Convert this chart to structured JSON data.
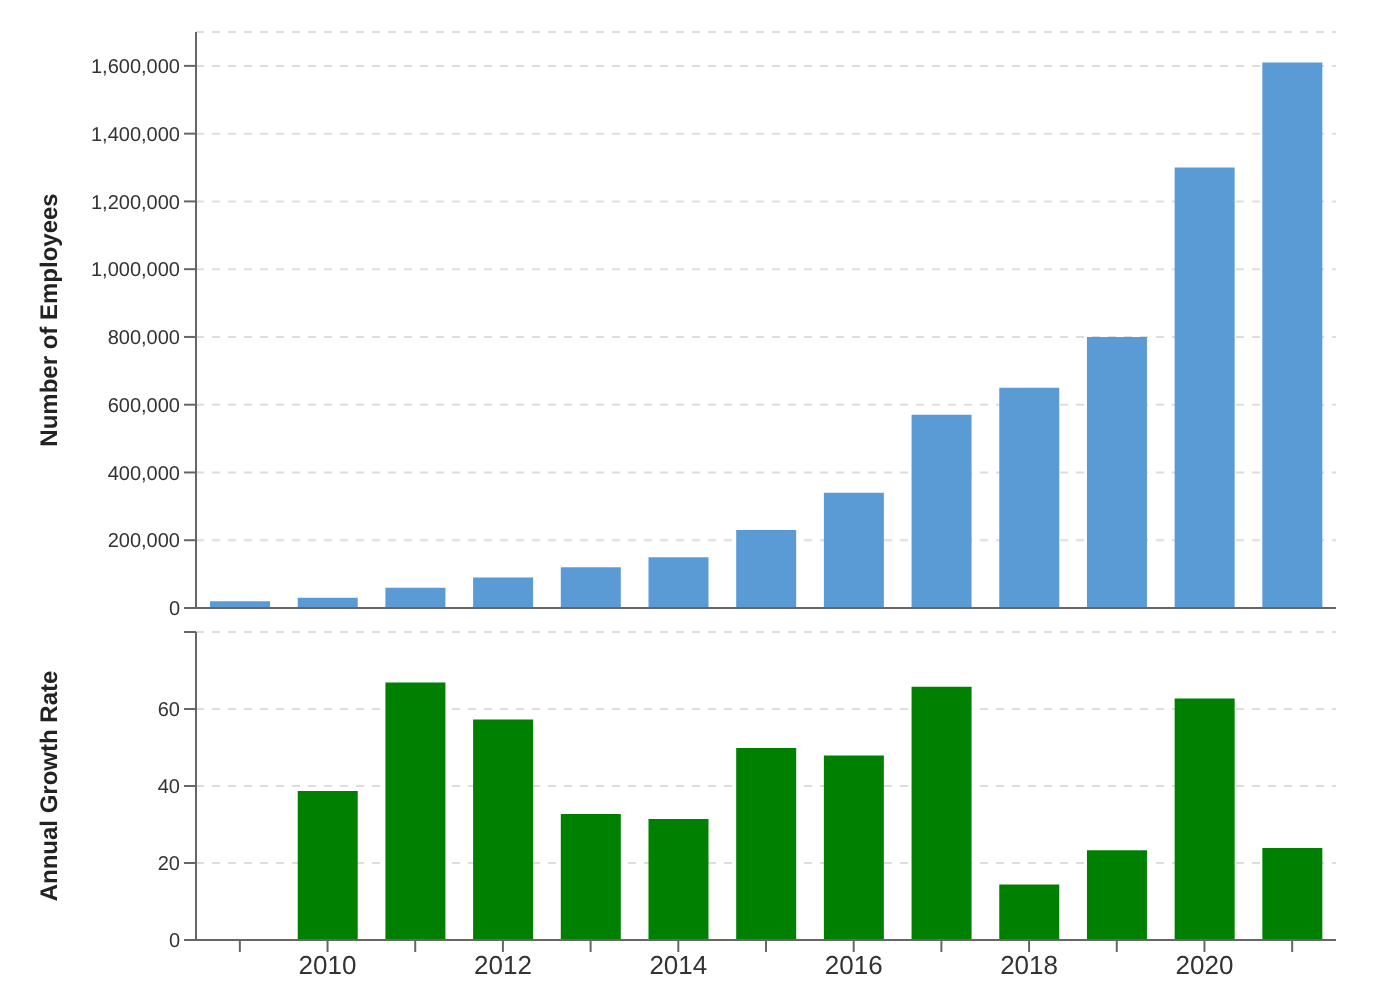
{
  "chart_data": [
    {
      "type": "bar",
      "ylabel": "Number of Employees",
      "categories": [
        null,
        null,
        null,
        null,
        null,
        null,
        null,
        null,
        null,
        null,
        null,
        null,
        null
      ],
      "values": [
        20000,
        30000,
        60000,
        90000,
        120000,
        150000,
        230000,
        340000,
        570000,
        650000,
        800000,
        1300000,
        1610000
      ],
      "color": "#5b9bd5",
      "ylim": [
        0,
        1700000
      ],
      "yticks": [
        {
          "value": 0,
          "label": "0"
        },
        {
          "value": 200000,
          "label": "200,000"
        },
        {
          "value": 400000,
          "label": "400,000"
        },
        {
          "value": 600000,
          "label": "600,000"
        },
        {
          "value": 800000,
          "label": "800,000"
        },
        {
          "value": 1000000,
          "label": "1,000,000"
        },
        {
          "value": 1200000,
          "label": "1,200,000"
        },
        {
          "value": 1400000,
          "label": "1,400,000"
        },
        {
          "value": 1600000,
          "label": "1,600,000"
        }
      ],
      "grid": "y",
      "tick_labels": "y"
    },
    {
      "type": "bar",
      "ylabel": "Annual Growth Rate",
      "categories": [
        null,
        "2010",
        null,
        "2012",
        null,
        "2014",
        null,
        "2016",
        null,
        "2018",
        null,
        "2020",
        null
      ],
      "values": [
        null,
        38.7,
        66.9,
        57.3,
        32.7,
        31.4,
        49.9,
        47.9,
        65.8,
        14.4,
        23.3,
        62.7,
        23.9
      ],
      "color": "#008000",
      "ylim": [
        0,
        80
      ],
      "yticks": [
        0,
        20,
        40,
        60,
        {
          "value": 80,
          "label": null
        }
      ],
      "grid": "y"
    }
  ]
}
